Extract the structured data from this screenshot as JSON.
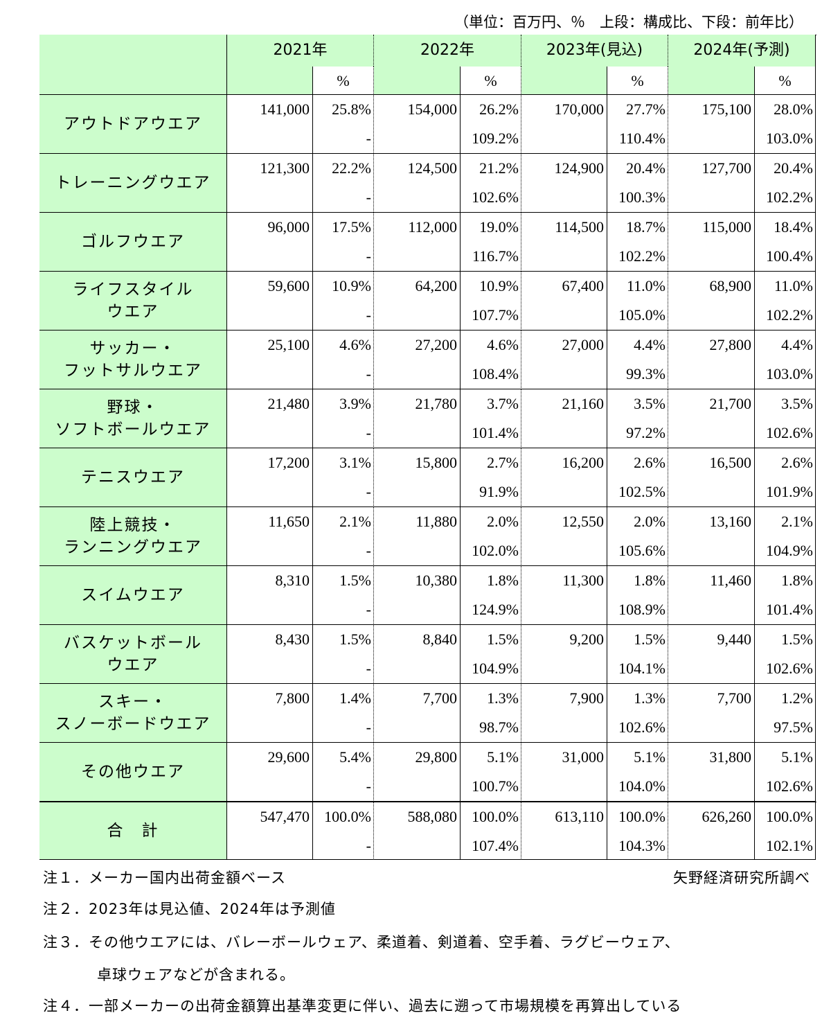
{
  "unit_note": "（単位：百万円、％　上段：構成比、下段：前年比）",
  "header": {
    "years": [
      "2021年",
      "2022年",
      "2023年(見込)",
      "2024年(予測)"
    ],
    "pct_label": "%"
  },
  "table": {
    "rows": [
      {
        "label": [
          "アウトドアウエア"
        ],
        "cells": [
          [
            "141,000",
            "25.8%",
            "-"
          ],
          [
            "154,000",
            "26.2%",
            "109.2%"
          ],
          [
            "170,000",
            "27.7%",
            "110.4%"
          ],
          [
            "175,100",
            "28.0%",
            "103.0%"
          ]
        ]
      },
      {
        "label": [
          "トレーニングウエア"
        ],
        "cells": [
          [
            "121,300",
            "22.2%",
            "-"
          ],
          [
            "124,500",
            "21.2%",
            "102.6%"
          ],
          [
            "124,900",
            "20.4%",
            "100.3%"
          ],
          [
            "127,700",
            "20.4%",
            "102.2%"
          ]
        ]
      },
      {
        "label": [
          "ゴルフウエア"
        ],
        "cells": [
          [
            "96,000",
            "17.5%",
            "-"
          ],
          [
            "112,000",
            "19.0%",
            "116.7%"
          ],
          [
            "114,500",
            "18.7%",
            "102.2%"
          ],
          [
            "115,000",
            "18.4%",
            "100.4%"
          ]
        ]
      },
      {
        "label": [
          "ライフスタイル",
          "ウエア"
        ],
        "cells": [
          [
            "59,600",
            "10.9%",
            "-"
          ],
          [
            "64,200",
            "10.9%",
            "107.7%"
          ],
          [
            "67,400",
            "11.0%",
            "105.0%"
          ],
          [
            "68,900",
            "11.0%",
            "102.2%"
          ]
        ]
      },
      {
        "label": [
          "サッカー・",
          "フットサルウエア"
        ],
        "cells": [
          [
            "25,100",
            "4.6%",
            "-"
          ],
          [
            "27,200",
            "4.6%",
            "108.4%"
          ],
          [
            "27,000",
            "4.4%",
            "99.3%"
          ],
          [
            "27,800",
            "4.4%",
            "103.0%"
          ]
        ]
      },
      {
        "label": [
          "野球・",
          "ソフトボールウエア"
        ],
        "cells": [
          [
            "21,480",
            "3.9%",
            "-"
          ],
          [
            "21,780",
            "3.7%",
            "101.4%"
          ],
          [
            "21,160",
            "3.5%",
            "97.2%"
          ],
          [
            "21,700",
            "3.5%",
            "102.6%"
          ]
        ]
      },
      {
        "label": [
          "テニスウエア"
        ],
        "cells": [
          [
            "17,200",
            "3.1%",
            "-"
          ],
          [
            "15,800",
            "2.7%",
            "91.9%"
          ],
          [
            "16,200",
            "2.6%",
            "102.5%"
          ],
          [
            "16,500",
            "2.6%",
            "101.9%"
          ]
        ]
      },
      {
        "label": [
          "陸上競技・",
          "ランニングウエア"
        ],
        "cells": [
          [
            "11,650",
            "2.1%",
            "-"
          ],
          [
            "11,880",
            "2.0%",
            "102.0%"
          ],
          [
            "12,550",
            "2.0%",
            "105.6%"
          ],
          [
            "13,160",
            "2.1%",
            "104.9%"
          ]
        ]
      },
      {
        "label": [
          "スイムウエア"
        ],
        "cells": [
          [
            "8,310",
            "1.5%",
            "-"
          ],
          [
            "10,380",
            "1.8%",
            "124.9%"
          ],
          [
            "11,300",
            "1.8%",
            "108.9%"
          ],
          [
            "11,460",
            "1.8%",
            "101.4%"
          ]
        ]
      },
      {
        "label": [
          "バスケットボール",
          "ウエア"
        ],
        "cells": [
          [
            "8,430",
            "1.5%",
            "-"
          ],
          [
            "8,840",
            "1.5%",
            "104.9%"
          ],
          [
            "9,200",
            "1.5%",
            "104.1%"
          ],
          [
            "9,440",
            "1.5%",
            "102.6%"
          ]
        ]
      },
      {
        "label": [
          "スキー・",
          "スノーボードウエア"
        ],
        "cells": [
          [
            "7,800",
            "1.4%",
            "-"
          ],
          [
            "7,700",
            "1.3%",
            "98.7%"
          ],
          [
            "7,900",
            "1.3%",
            "102.6%"
          ],
          [
            "7,700",
            "1.2%",
            "97.5%"
          ]
        ]
      },
      {
        "label": [
          "その他ウエア"
        ],
        "cells": [
          [
            "29,600",
            "5.4%",
            "-"
          ],
          [
            "29,800",
            "5.1%",
            "100.7%"
          ],
          [
            "31,000",
            "5.1%",
            "104.0%"
          ],
          [
            "31,800",
            "5.1%",
            "102.6%"
          ]
        ]
      }
    ],
    "total": {
      "label": [
        "合　計"
      ],
      "cells": [
        [
          "547,470",
          "100.0%",
          "-"
        ],
        [
          "588,080",
          "100.0%",
          "107.4%"
        ],
        [
          "613,110",
          "100.0%",
          "104.3%"
        ],
        [
          "626,260",
          "100.0%",
          "102.1%"
        ]
      ]
    }
  },
  "notes": [
    "注１．メーカー国内出荷金額ベース",
    "注２．2023年は見込値、2024年は予測値",
    "注３．その他ウエアには、バレーボールウェア、柔道着、剣道着、空手着、ラグビーウェア、",
    "卓球ウェアなどが含まれる。",
    "注４．一部メーカーの出荷金額算出基準変更に伴い、過去に遡って市場規模を再算出している"
  ],
  "source": "矢野経済研究所調べ"
}
